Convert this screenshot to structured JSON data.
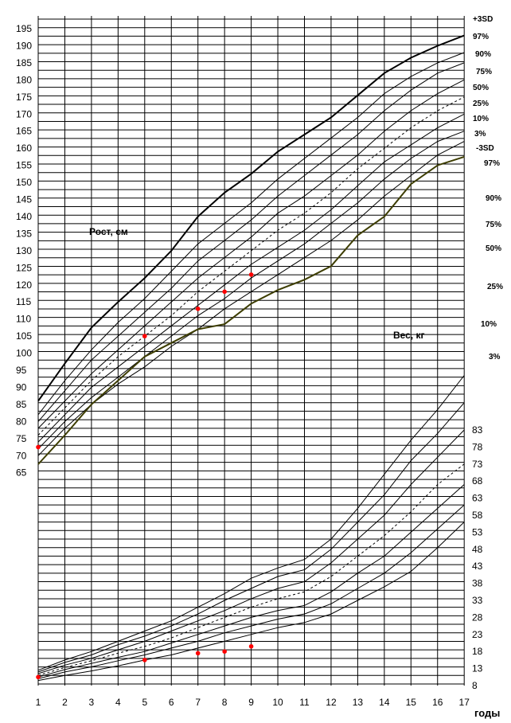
{
  "chart_data": {
    "type": "line",
    "xlabel": "годы",
    "x": [
      1,
      2,
      3,
      4,
      5,
      6,
      7,
      8,
      9,
      10,
      11,
      12,
      13,
      14,
      15,
      16,
      17
    ],
    "height_axis": {
      "ticks": [
        195,
        190,
        185,
        180,
        175,
        170,
        165,
        160,
        155,
        150,
        145,
        140,
        135,
        130,
        125,
        120,
        115,
        110,
        105,
        100,
        95,
        90,
        85,
        80,
        75,
        70,
        65
      ],
      "range": [
        65,
        195
      ]
    },
    "weight_axis": {
      "ticks": [
        83,
        78,
        73,
        68,
        63,
        58,
        53,
        48,
        43,
        38,
        33,
        28,
        23,
        18,
        13,
        8
      ]
    },
    "height_title": "Рост, см",
    "weight_title": "Вес, кг",
    "height_percentile_labels": [
      "+3SD",
      "97%",
      "90%",
      "75%",
      "50%",
      "25%",
      "10%",
      "3%",
      "-3SD"
    ],
    "weight_percentile_labels": [
      "97%",
      "90%",
      "75%",
      "50%",
      "25%",
      "10%",
      "3%"
    ],
    "height_series": [
      {
        "name": "+3SD",
        "bold": true,
        "values": [
          86,
          97,
          107.5,
          115,
          122,
          130,
          140,
          147,
          152.5,
          159,
          164,
          169,
          175.5,
          182,
          186.5,
          190,
          193
        ]
      },
      {
        "name": "97%",
        "values": [
          82,
          92,
          101,
          109,
          116,
          124,
          132,
          138,
          144,
          151,
          157,
          163,
          169,
          176,
          181,
          185,
          188
        ]
      },
      {
        "name": "90%",
        "values": [
          80,
          89,
          98,
          105,
          112,
          119,
          127,
          133,
          139,
          146,
          152,
          158,
          164,
          171,
          177,
          182,
          185
        ]
      },
      {
        "name": "75%",
        "values": [
          78,
          86,
          94,
          101,
          108,
          115,
          122,
          128,
          134,
          141,
          146,
          152,
          158,
          165,
          171,
          176,
          180
        ]
      },
      {
        "name": "50%",
        "dashed": true,
        "values": [
          76,
          84,
          92,
          99,
          105,
          111,
          118,
          124,
          130,
          136,
          141,
          147,
          154,
          160,
          166,
          171,
          175
        ]
      },
      {
        "name": "25%",
        "values": [
          74,
          82,
          90,
          96,
          102,
          108,
          114,
          120,
          126,
          131,
          136,
          142,
          149,
          156,
          161,
          166,
          170
        ]
      },
      {
        "name": "10%",
        "values": [
          72,
          80,
          87,
          93,
          99,
          105,
          111,
          116,
          122,
          127,
          132,
          138,
          144,
          151,
          157,
          162,
          165
        ]
      },
      {
        "name": "3%",
        "values": [
          70,
          78,
          85,
          91,
          96,
          102,
          107,
          113,
          118,
          123,
          128,
          133,
          139,
          146,
          152,
          158,
          162
        ]
      },
      {
        "name": "-3SD",
        "bold": true,
        "olive": true,
        "values": [
          67.5,
          76,
          85,
          92,
          99,
          103,
          107,
          108.5,
          114.5,
          118.5,
          121.5,
          125.5,
          134.5,
          140,
          149.5,
          155,
          157.5
        ]
      }
    ],
    "weight_series": [
      {
        "name": "97%",
        "values": [
          12.5,
          15.5,
          18,
          21,
          24,
          27,
          31,
          35,
          39.5,
          42.5,
          45,
          51,
          60,
          70,
          80,
          89,
          99
        ]
      },
      {
        "name": "90%",
        "values": [
          12,
          14.8,
          17,
          20,
          22.5,
          25.5,
          29,
          33,
          36.5,
          40,
          42,
          48,
          56,
          64,
          74,
          82,
          91
        ]
      },
      {
        "name": "75%",
        "values": [
          11.5,
          14,
          16,
          18.5,
          21,
          24,
          27,
          30,
          33.5,
          36.5,
          38.5,
          44,
          51,
          58,
          67,
          75,
          83
        ]
      },
      {
        "name": "50%",
        "dashed": true,
        "values": [
          11,
          13.3,
          15.3,
          17.5,
          19.5,
          22,
          25,
          28,
          31,
          33.5,
          35.5,
          40,
          46,
          52,
          59,
          67,
          73
        ]
      },
      {
        "name": "25%",
        "values": [
          10.5,
          12.7,
          14.5,
          16.3,
          18,
          20.5,
          23,
          25.5,
          28,
          30,
          31.5,
          35.5,
          41,
          46,
          53,
          60,
          67
        ]
      },
      {
        "name": "10%",
        "values": [
          10,
          12,
          13.5,
          15.3,
          17,
          19,
          21,
          23.5,
          25.5,
          27.5,
          29,
          32,
          36.5,
          41,
          47,
          54,
          61
        ]
      },
      {
        "name": "3%",
        "values": [
          9.5,
          11,
          12.3,
          13.8,
          15.5,
          17,
          19,
          21,
          23,
          25,
          26.5,
          29,
          33,
          37,
          41.5,
          48.5,
          56
        ]
      }
    ],
    "height_points": [
      {
        "x": 1,
        "y": 72.5
      },
      {
        "x": 5,
        "y": 105
      },
      {
        "x": 7,
        "y": 113
      },
      {
        "x": 8,
        "y": 118
      },
      {
        "x": 9,
        "y": 123
      }
    ],
    "weight_points": [
      {
        "x": 1,
        "y": 10.5
      },
      {
        "x": 5,
        "y": 15.5
      },
      {
        "x": 7,
        "y": 17.5
      },
      {
        "x": 8,
        "y": 18
      },
      {
        "x": 9,
        "y": 19.5
      }
    ],
    "colors": {
      "grid": "#000000",
      "curve": "#000000",
      "minus3sd": "#3d3d00",
      "points": "#ff0000"
    }
  }
}
